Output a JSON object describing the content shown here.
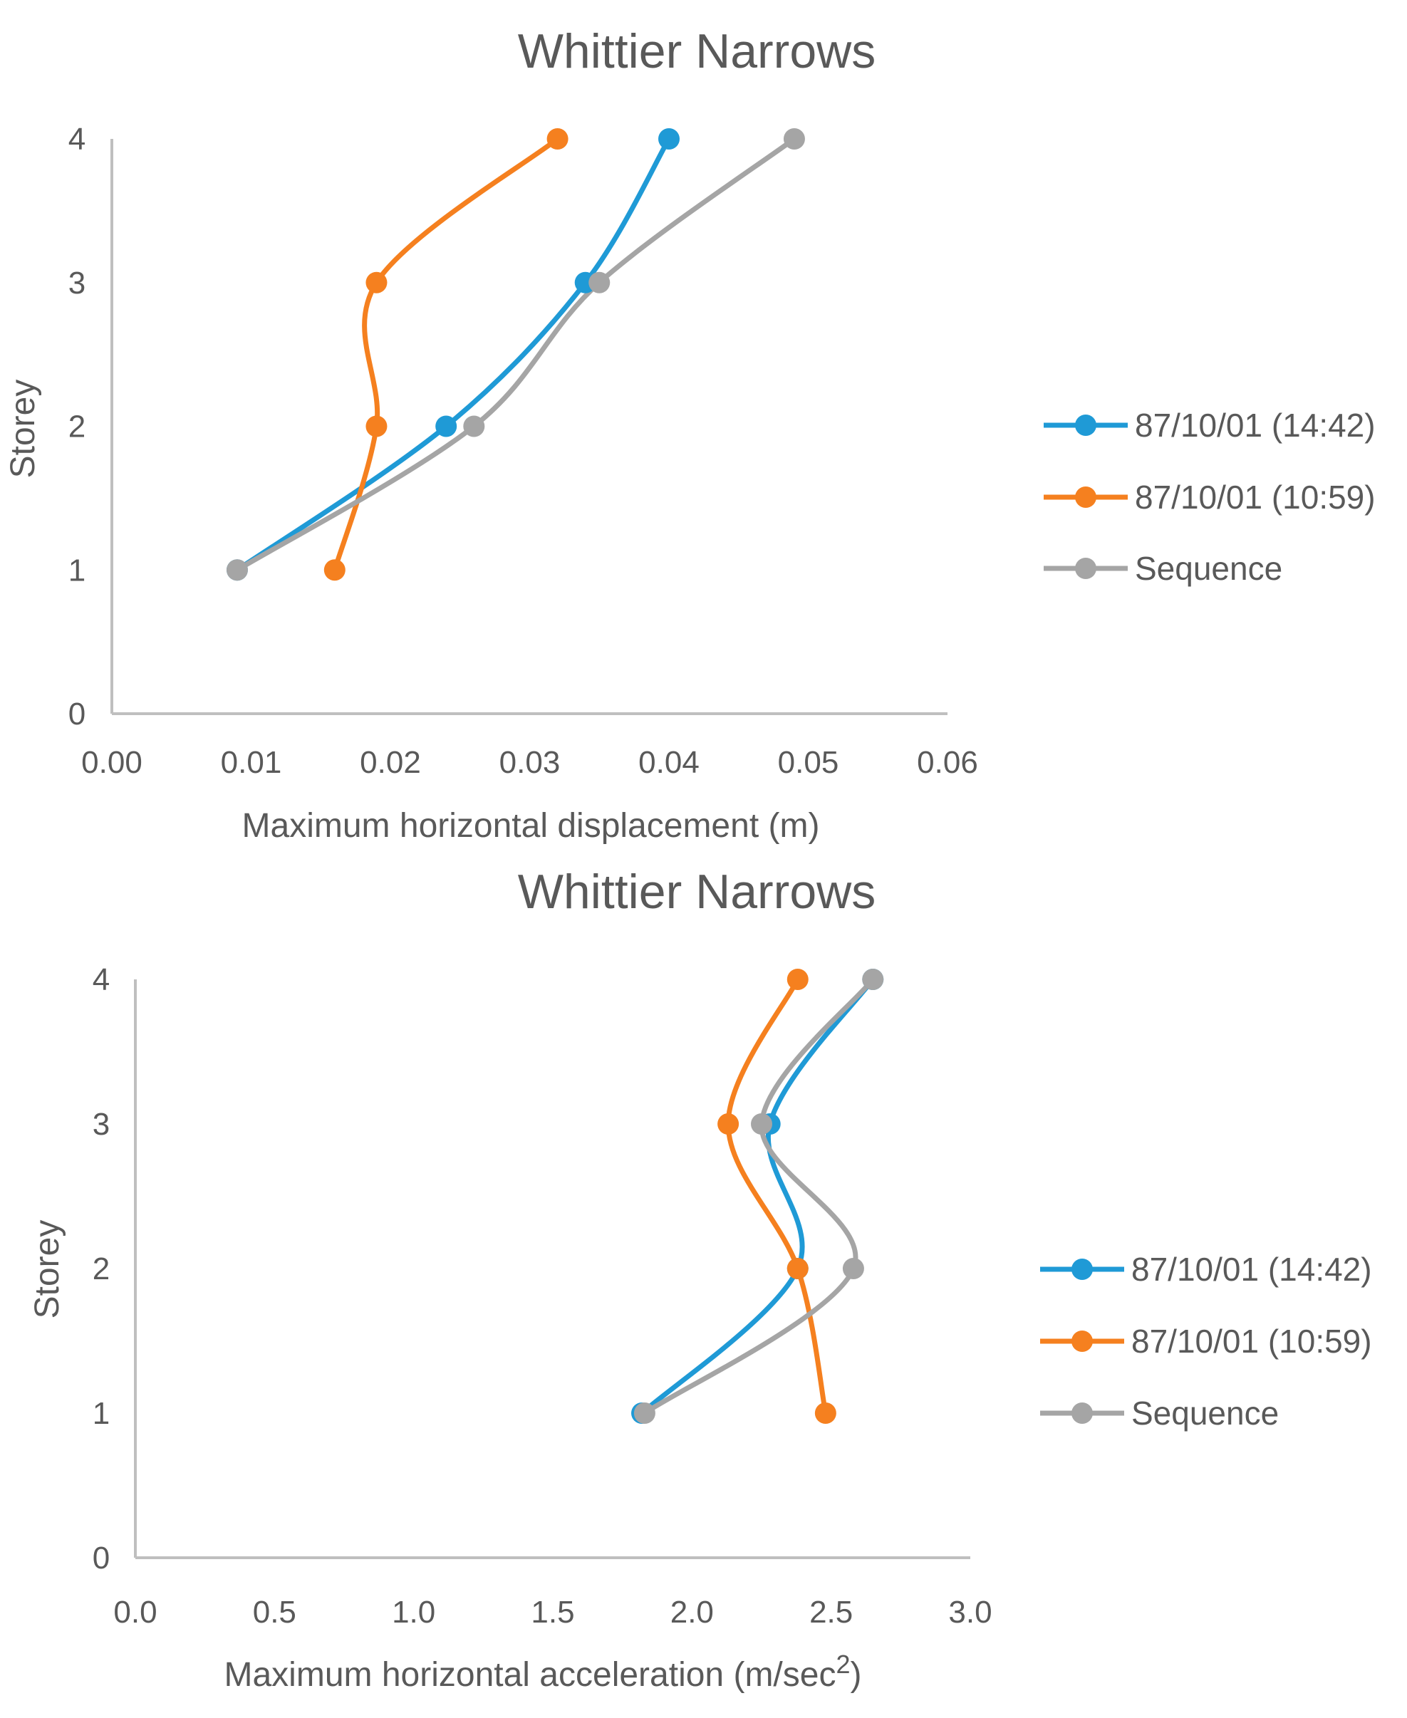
{
  "chart_data": [
    {
      "type": "line",
      "title": "Whittier Narrows",
      "xlabel": "Maximum horizontal displacement (m)",
      "ylabel": "Storey",
      "xlim": [
        0,
        0.06
      ],
      "ylim": [
        0,
        4
      ],
      "x_ticks": [
        "0.00",
        "0.01",
        "0.02",
        "0.03",
        "0.04",
        "0.05",
        "0.06"
      ],
      "y_ticks": [
        "0",
        "1",
        "2",
        "3",
        "4"
      ],
      "legend_position": "right",
      "series": [
        {
          "name": "87/10/01 (14:42)",
          "color": "#1f9ad6",
          "x": [
            0.009,
            0.024,
            0.034,
            0.04
          ],
          "y": [
            1,
            2,
            3,
            4
          ]
        },
        {
          "name": "87/10/01 (10:59)",
          "color": "#f5801f",
          "x": [
            0.016,
            0.019,
            0.019,
            0.032
          ],
          "y": [
            1,
            2,
            3,
            4
          ]
        },
        {
          "name": "Sequence",
          "color": "#a5a5a5",
          "x": [
            0.009,
            0.026,
            0.035,
            0.049
          ],
          "y": [
            1,
            2,
            3,
            4
          ]
        }
      ]
    },
    {
      "type": "line",
      "title": "Whittier Narrows",
      "xlabel": "Maximum horizontal acceleration (m/sec",
      "xlabel_sup": "2",
      "xlabel_end": ")",
      "ylabel": "Storey",
      "xlim": [
        0,
        3
      ],
      "ylim": [
        0,
        4
      ],
      "x_ticks": [
        "0.0",
        "0.5",
        "1.0",
        "1.5",
        "2.0",
        "2.5",
        "3.0"
      ],
      "y_ticks": [
        "0",
        "1",
        "2",
        "3",
        "4"
      ],
      "legend_position": "right",
      "series": [
        {
          "name": "87/10/01 (14:42)",
          "color": "#1f9ad6",
          "x": [
            1.82,
            2.38,
            2.28,
            2.65
          ],
          "y": [
            1,
            2,
            3,
            4
          ]
        },
        {
          "name": "87/10/01 (10:59)",
          "color": "#f5801f",
          "x": [
            2.48,
            2.38,
            2.13,
            2.38
          ],
          "y": [
            1,
            2,
            3,
            4
          ]
        },
        {
          "name": "Sequence",
          "color": "#a5a5a5",
          "x": [
            1.83,
            2.58,
            2.25,
            2.65
          ],
          "y": [
            1,
            2,
            3,
            4
          ]
        }
      ]
    }
  ]
}
